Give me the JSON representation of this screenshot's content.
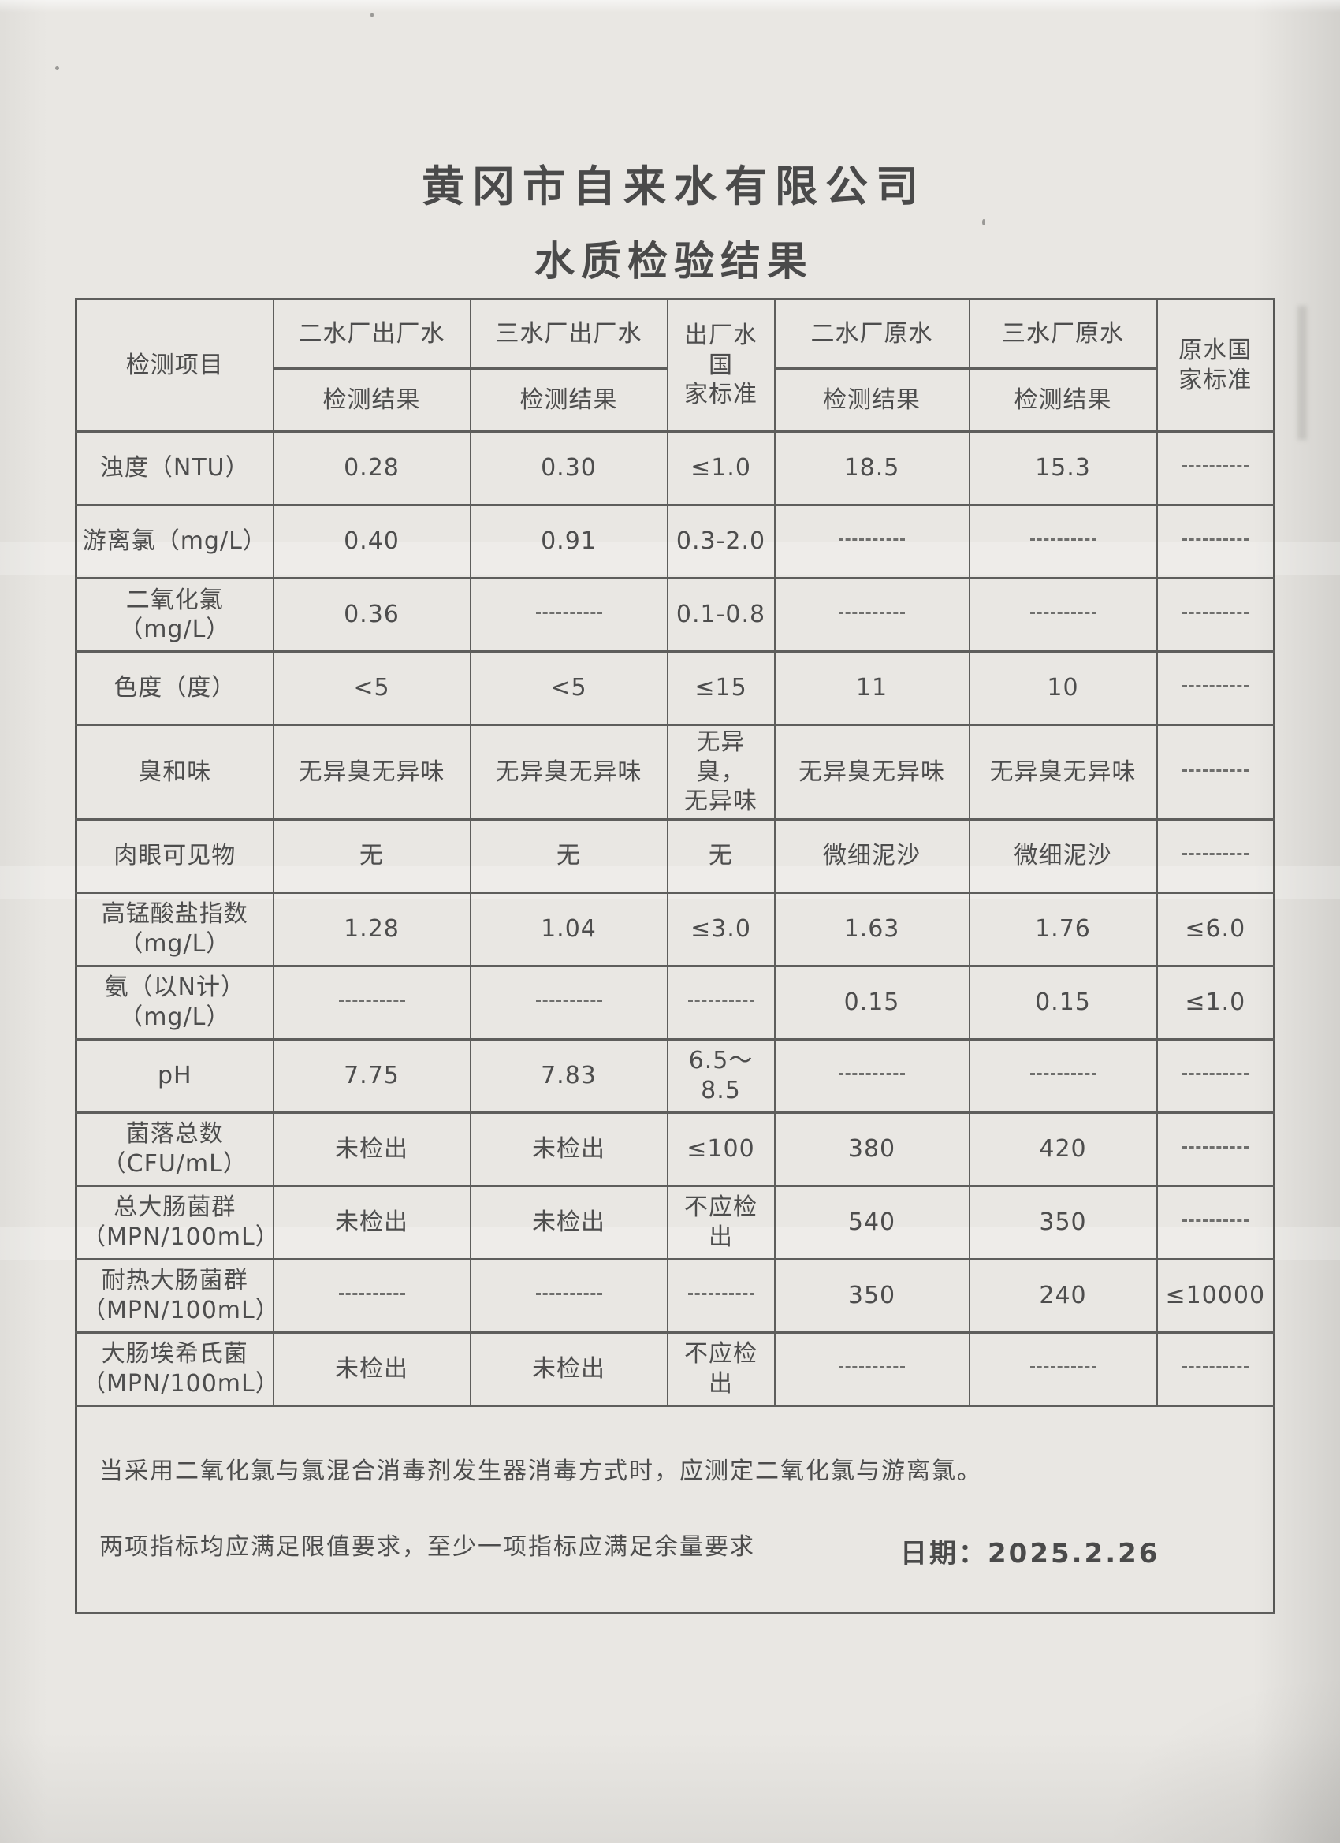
{
  "page": {
    "title_line1": "黄冈市自来水有限公司",
    "title_line2": "水质检验结果",
    "date_label": "日期：",
    "date_value": "2025.2.26"
  },
  "colors": {
    "ink": "#4d4d4d",
    "paper": "#e9e7e3",
    "border": "#5e5e5c"
  },
  "table": {
    "header": {
      "item": "检测项目",
      "col1": "二水厂出厂水",
      "col2": "三水厂出厂水",
      "col3": "出厂水国\n家标准",
      "col4": "二水厂原水",
      "col5": "三水厂原水",
      "col6": "原水国\n家标准",
      "result": "检测结果"
    },
    "rows": [
      {
        "label": "浊度（NTU）",
        "values": [
          "0.28",
          "0.30",
          "≤1.0",
          "18.5",
          "15.3",
          "———"
        ]
      },
      {
        "label": "游离氯（mg/L）",
        "values": [
          "0.40",
          "0.91",
          "0.3-2.0",
          "———",
          "———",
          "———"
        ]
      },
      {
        "label": "二氧化氯\n（mg/L）",
        "values": [
          "0.36",
          "———",
          "0.1-0.8",
          "———",
          "———",
          "———"
        ]
      },
      {
        "label": "色度（度）",
        "values": [
          "<5",
          "<5",
          "≤15",
          "11",
          "10",
          "———"
        ]
      },
      {
        "label": "臭和味",
        "values": [
          "无异臭无异味",
          "无异臭无异味",
          "无异臭，\n无异味",
          "无异臭无异味",
          "无异臭无异味",
          "———"
        ]
      },
      {
        "label": "肉眼可见物",
        "values": [
          "无",
          "无",
          "无",
          "微细泥沙",
          "微细泥沙",
          "———"
        ]
      },
      {
        "label": "高锰酸盐指数\n（mg/L）",
        "values": [
          "1.28",
          "1.04",
          "≤3.0",
          "1.63",
          "1.76",
          "≤6.0"
        ]
      },
      {
        "label": "氨（以N计）\n（mg/L）",
        "values": [
          "———",
          "———",
          "———",
          "0.15",
          "0.15",
          "≤1.0"
        ]
      },
      {
        "label": "pH",
        "values": [
          "7.75",
          "7.83",
          "6.5～8.5",
          "———",
          "———",
          "———"
        ]
      },
      {
        "label": "菌落总数\n（CFU/mL）",
        "values": [
          "未检出",
          "未检出",
          "≤100",
          "380",
          "420",
          "———"
        ]
      },
      {
        "label": "总大肠菌群\n（MPN/100mL）",
        "values": [
          "未检出",
          "未检出",
          "不应检出",
          "540",
          "350",
          "———"
        ]
      },
      {
        "label": "耐热大肠菌群\n（MPN/100mL）",
        "values": [
          "———",
          "———",
          "———",
          "350",
          "240",
          "≤10000"
        ]
      },
      {
        "label": "大肠埃希氏菌\n（MPN/100mL）",
        "values": [
          "未检出",
          "未检出",
          "不应检出",
          "———",
          "———",
          "———"
        ]
      }
    ],
    "note_line1": "当采用二氧化氯与氯混合消毒剂发生器消毒方式时，应测定二氧化氯与游离氯。",
    "note_line2": "两项指标均应满足限值要求，至少一项指标应满足余量要求"
  }
}
